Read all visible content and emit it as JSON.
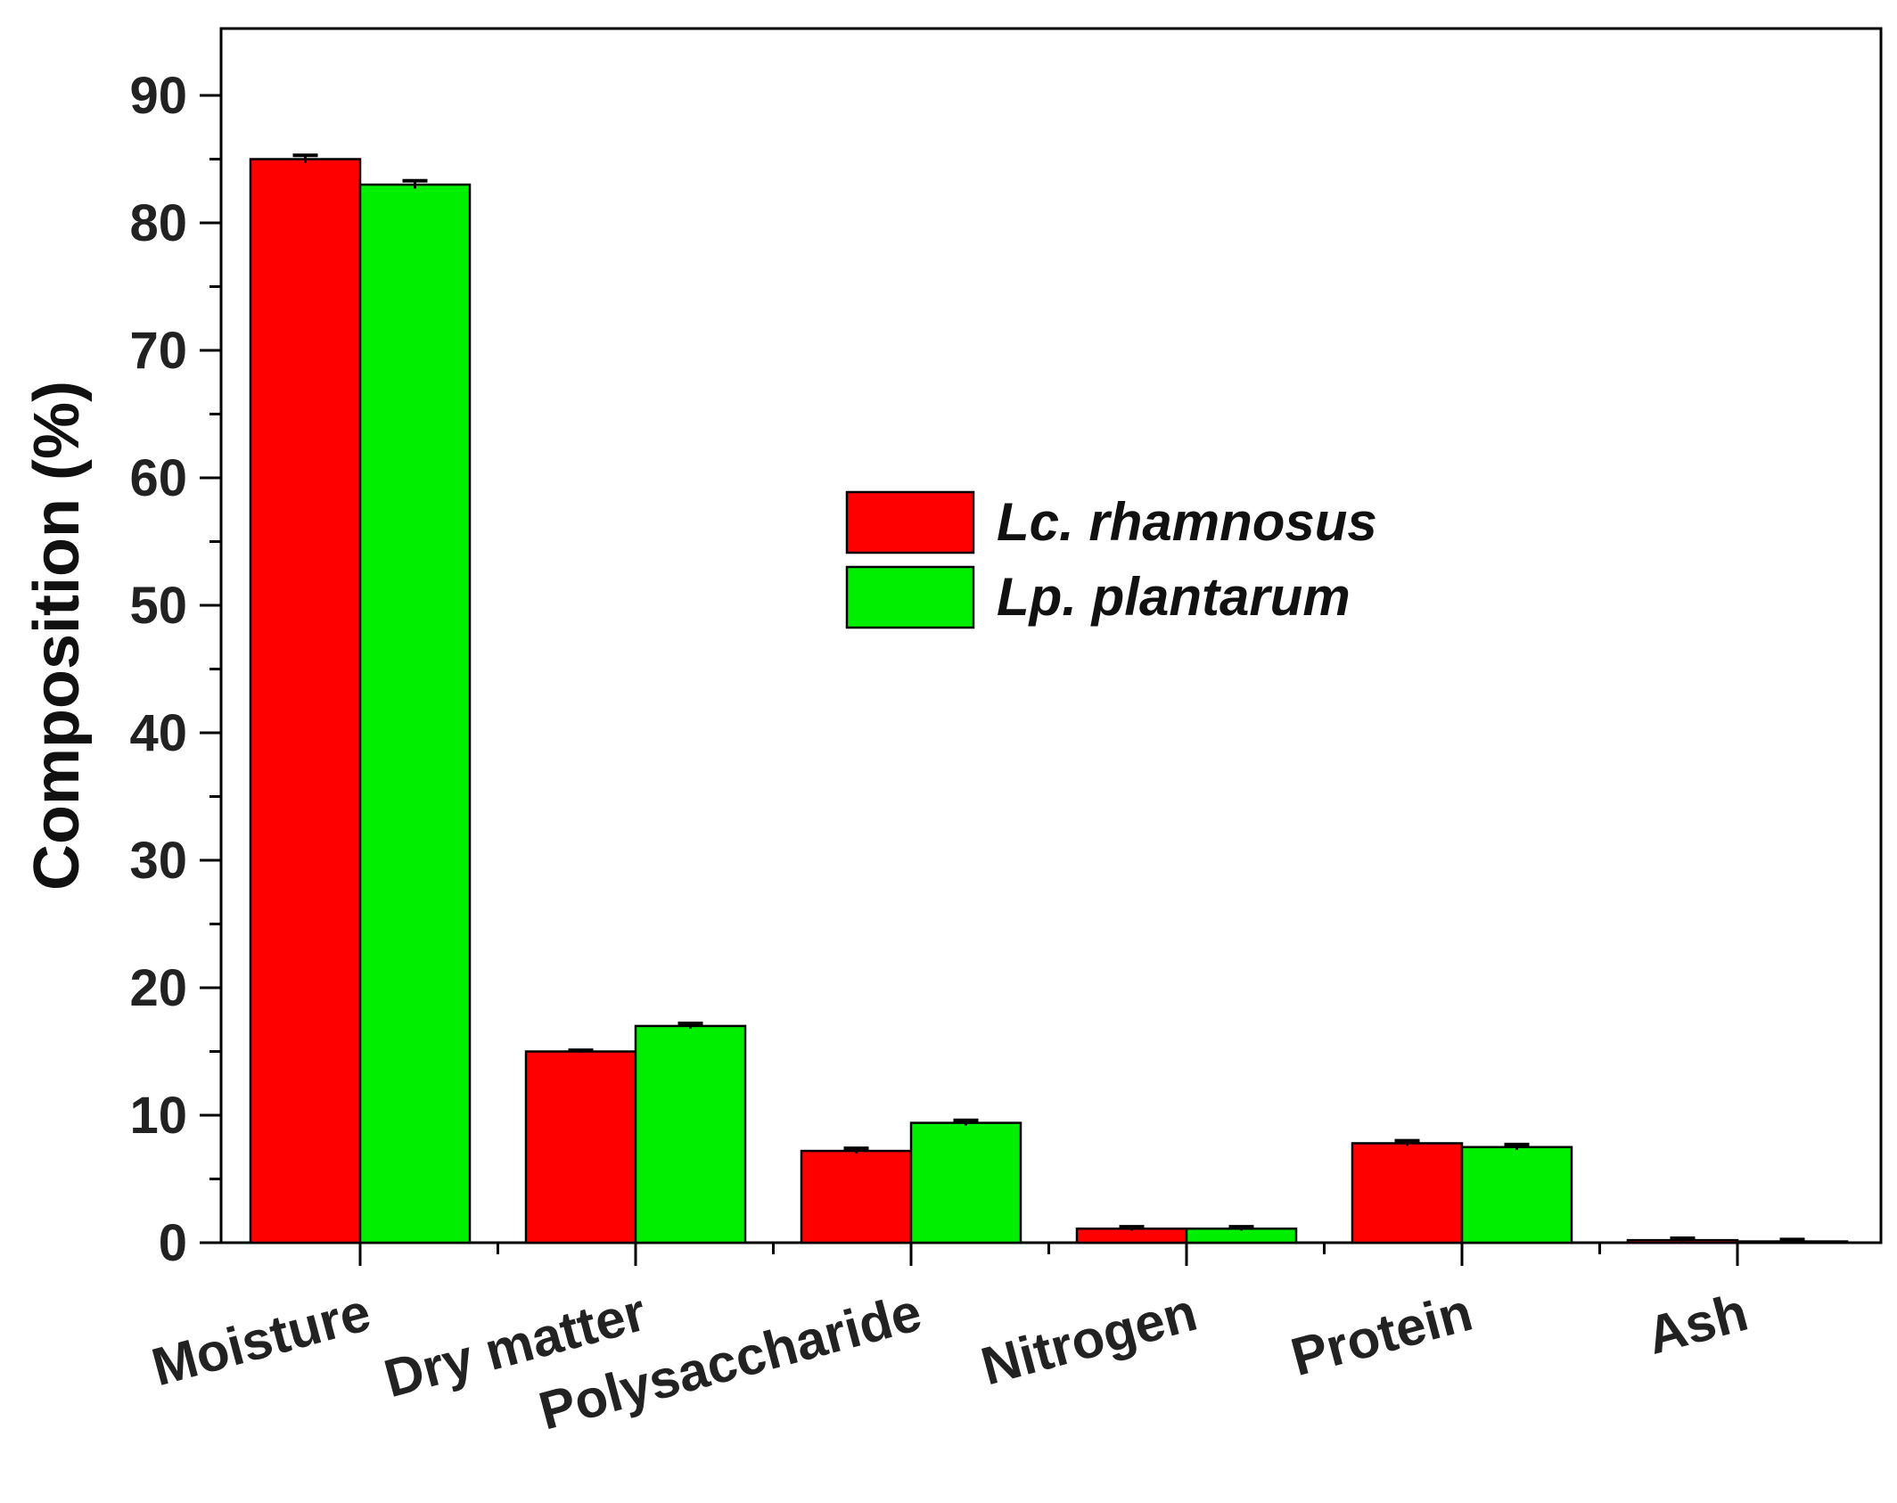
{
  "chart_data": {
    "type": "bar",
    "categories": [
      "Moisture",
      "Dry matter",
      "Polysaccharide",
      "Nitrogen",
      "Protein",
      "Ash"
    ],
    "series": [
      {
        "name": "Lc. rhamnosus",
        "color": "#ff0000",
        "values": [
          85.0,
          15.0,
          7.2,
          1.1,
          7.8,
          0.2
        ],
        "errors": [
          0.3,
          0.1,
          0.2,
          0.15,
          0.2,
          0.15
        ]
      },
      {
        "name": "Lp. plantarum",
        "color": "#00ee00",
        "values": [
          83.0,
          17.0,
          9.4,
          1.1,
          7.5,
          0.1
        ],
        "errors": [
          0.3,
          0.2,
          0.2,
          0.15,
          0.2,
          0.15
        ]
      }
    ],
    "ylabel": "Composition (%)",
    "xlabel": "",
    "ylim": [
      0,
      95
    ],
    "yticks": [
      0,
      10,
      20,
      30,
      40,
      50,
      60,
      70,
      80,
      90
    ],
    "grid": false,
    "legend_position": "center-right"
  }
}
